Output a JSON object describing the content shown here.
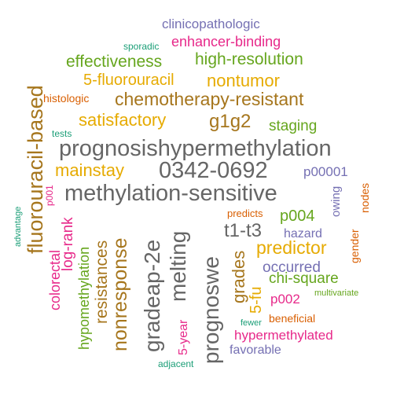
{
  "colors": {
    "teal": "#1b9e77",
    "orange": "#d95f02",
    "purple": "#7570b3",
    "magenta": "#e7298a",
    "green": "#66a61e",
    "gold": "#e6ab02",
    "brown": "#a6761d",
    "gray": "#666666"
  },
  "words": [
    "clinicopathologic",
    "sporadic",
    "enhancer-binding",
    "effectiveness",
    "high-resolution",
    "5-fluorouracil",
    "nontumor",
    "histologic",
    "chemotherapy-resistant",
    "satisfactory",
    "g1g2",
    "staging",
    "tests",
    "prognosishypermethylation",
    "mainstay",
    "0342-0692",
    "p00001",
    "methylation-sensitive",
    "fluorouracil-based",
    "p001",
    "advantage",
    "predicts",
    "p004",
    "owing",
    "nodes",
    "t1-t3",
    "hazard",
    "log-rank",
    "colorectal",
    "resistances",
    "nonresponse",
    "gradeap-2e",
    "melting",
    "prognoswe",
    "grades",
    "predictor",
    "gender",
    "occurred",
    "5-fu",
    "chi-square",
    "hypomethylation",
    "p002",
    "multivariate",
    "5-year",
    "beneficial",
    "fewer",
    "hypermethylated",
    "favorable",
    "adjacent"
  ]
}
